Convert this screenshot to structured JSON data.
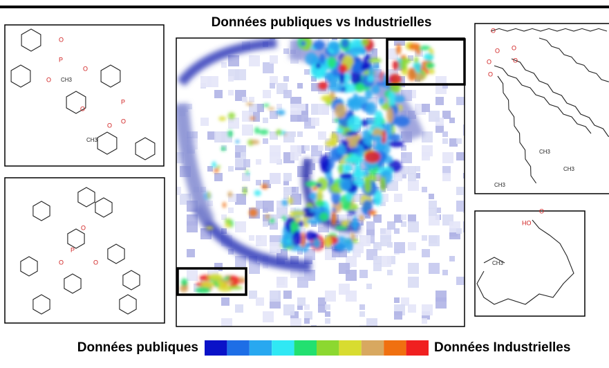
{
  "title": "Données publiques vs Industrielles",
  "legend": {
    "left": "Données publiques",
    "right": "Données Industrielles",
    "colors": [
      "#0a12c8",
      "#1e6ee6",
      "#28a8f0",
      "#30e8f4",
      "#22e070",
      "#8cd830",
      "#d8dc30",
      "#d8a860",
      "#f07010",
      "#f02020"
    ]
  },
  "molecules": [
    {
      "labels": [
        "O",
        "P",
        "O",
        "O",
        "CH3",
        "O",
        "P",
        "O",
        "O",
        "CH3"
      ]
    },
    {
      "labels": [
        "O",
        "P",
        "O",
        "O"
      ]
    },
    {
      "labels": [
        "O",
        "O",
        "O",
        "O",
        "O",
        "O",
        "CH3",
        "CH3",
        "CH3"
      ]
    },
    {
      "labels": [
        "HO",
        "O",
        "CH3"
      ]
    }
  ]
}
